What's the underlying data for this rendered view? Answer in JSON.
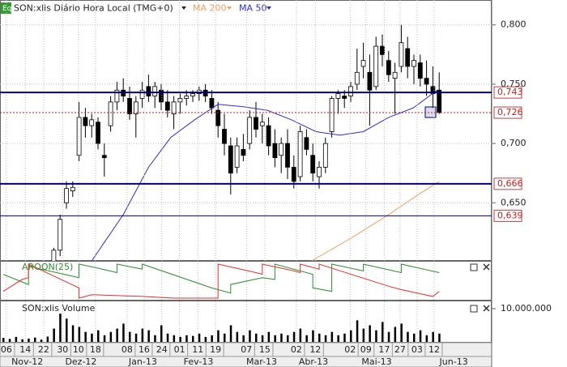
{
  "chart_data": [
    {
      "type": "candlestick",
      "title": "SON:xlis Diário Hora Local (TMG+0)",
      "badge": "Eq",
      "ylim": [
        0.601,
        0.821
      ],
      "yticks": [
        {
          "value": 0.8,
          "label": "0,800"
        },
        {
          "value": 0.75,
          "label": "0,750"
        },
        {
          "value": 0.7,
          "label": "0,700"
        },
        {
          "value": 0.65,
          "label": "0,650"
        }
      ],
      "grid": true,
      "levels": [
        {
          "value": 0.743,
          "label": "0,743",
          "color": "#000080",
          "style": "solid"
        },
        {
          "value": 0.726,
          "label": "0,726",
          "color": "#b22222",
          "style": "dotted"
        },
        {
          "value": 0.666,
          "label": "0,666",
          "color": "#000080",
          "style": "solid"
        },
        {
          "value": 0.639,
          "label": "0,639",
          "color": "#000080",
          "style": "thin"
        }
      ],
      "candles": [
        null,
        null,
        null,
        null,
        null,
        null,
        null,
        null,
        [
          0.6,
          0.612,
          0.598,
          0.61
        ],
        [
          0.61,
          0.64,
          0.605,
          0.636
        ],
        [
          0.65,
          0.668,
          0.645,
          0.662
        ],
        [
          0.66,
          0.668,
          0.655,
          0.663
        ],
        [
          0.69,
          0.735,
          0.685,
          0.722
        ],
        [
          0.722,
          0.73,
          0.705,
          0.715
        ],
        [
          0.715,
          0.725,
          0.705,
          0.72
        ],
        [
          0.718,
          0.722,
          0.695,
          0.7
        ],
        [
          0.69,
          0.7,
          0.672,
          0.688
        ],
        [
          0.715,
          0.74,
          0.71,
          0.735
        ],
        [
          0.735,
          0.752,
          0.728,
          0.745
        ],
        [
          0.745,
          0.755,
          0.735,
          0.74
        ],
        [
          0.738,
          0.748,
          0.72,
          0.725
        ],
        [
          0.725,
          0.74,
          0.705,
          0.735
        ],
        [
          0.738,
          0.752,
          0.73,
          0.745
        ],
        [
          0.748,
          0.758,
          0.735,
          0.74
        ],
        [
          0.74,
          0.752,
          0.73,
          0.748
        ],
        [
          0.745,
          0.75,
          0.728,
          0.735
        ],
        [
          0.735,
          0.745,
          0.722,
          0.728
        ],
        [
          0.725,
          0.74,
          0.712,
          0.735
        ],
        [
          0.735,
          0.742,
          0.725,
          0.738
        ],
        [
          0.738,
          0.745,
          0.732,
          0.74
        ],
        [
          0.74,
          0.745,
          0.735,
          0.742
        ],
        [
          0.742,
          0.748,
          0.736,
          0.745
        ],
        [
          0.745,
          0.75,
          0.735,
          0.74
        ],
        [
          0.738,
          0.745,
          0.725,
          0.73
        ],
        [
          0.728,
          0.735,
          0.705,
          0.715
        ],
        [
          0.712,
          0.725,
          0.69,
          0.7
        ],
        [
          0.698,
          0.705,
          0.657,
          0.675
        ],
        [
          0.68,
          0.705,
          0.675,
          0.698
        ],
        [
          0.695,
          0.708,
          0.685,
          0.69
        ],
        [
          0.7,
          0.728,
          0.695,
          0.722
        ],
        [
          0.722,
          0.735,
          0.705,
          0.712
        ],
        [
          0.715,
          0.725,
          0.7,
          0.718
        ],
        [
          0.715,
          0.722,
          0.69,
          0.698
        ],
        [
          0.7,
          0.712,
          0.68,
          0.688
        ],
        [
          0.69,
          0.705,
          0.675,
          0.7
        ],
        [
          0.7,
          0.712,
          0.67,
          0.68
        ],
        [
          0.68,
          0.69,
          0.662,
          0.668
        ],
        [
          0.672,
          0.715,
          0.668,
          0.71
        ],
        [
          0.705,
          0.712,
          0.69,
          0.695
        ],
        [
          0.69,
          0.7,
          0.668,
          0.675
        ],
        [
          0.672,
          0.685,
          0.662,
          0.68
        ],
        [
          0.68,
          0.705,
          0.675,
          0.7
        ],
        [
          0.71,
          0.74,
          0.705,
          0.738
        ],
        [
          0.738,
          0.745,
          0.725,
          0.742
        ],
        [
          0.74,
          0.745,
          0.73,
          0.738
        ],
        [
          0.74,
          0.752,
          0.735,
          0.748
        ],
        [
          0.75,
          0.78,
          0.745,
          0.76
        ],
        [
          0.765,
          0.785,
          0.755,
          0.77
        ],
        [
          0.76,
          0.775,
          0.715,
          0.745
        ],
        [
          0.748,
          0.79,
          0.745,
          0.782
        ],
        [
          0.782,
          0.792,
          0.765,
          0.775
        ],
        [
          0.77,
          0.778,
          0.752,
          0.758
        ],
        [
          0.755,
          0.768,
          0.725,
          0.76
        ],
        [
          0.765,
          0.8,
          0.76,
          0.785
        ],
        [
          0.78,
          0.79,
          0.755,
          0.765
        ],
        [
          0.765,
          0.775,
          0.75,
          0.77
        ],
        [
          0.768,
          0.775,
          0.748,
          0.755
        ],
        [
          0.755,
          0.77,
          0.74,
          0.75
        ],
        [
          0.748,
          0.765,
          0.73,
          0.742
        ],
        [
          0.745,
          0.76,
          0.725,
          0.726
        ]
      ],
      "series": [
        {
          "name": "MA 200",
          "color": "#f0a060",
          "x": [
            48.8,
            55,
            61,
            66,
            69
          ],
          "values": [
            0.601,
            0.62,
            0.64,
            0.658,
            0.668
          ]
        },
        {
          "name": "MA 50",
          "color": "#3030c0",
          "x": [
            14,
            19,
            23,
            26.5,
            30.3,
            34,
            38,
            41.8,
            45.6,
            49.5,
            53.3,
            57,
            61,
            64.9,
            68.7
          ],
          "values": [
            0.601,
            0.64,
            0.68,
            0.705,
            0.72,
            0.733,
            0.731,
            0.728,
            0.72,
            0.71,
            0.707,
            0.71,
            0.722,
            0.73,
            0.745
          ]
        }
      ]
    },
    {
      "type": "line",
      "title": "AROON(25)",
      "ylim": [
        0,
        100
      ],
      "series": [
        {
          "color": "#2e8b2e",
          "x": [
            0,
            4,
            4,
            6,
            12,
            12,
            15,
            18,
            18,
            22,
            22,
            33,
            36,
            36,
            41,
            43,
            43,
            49,
            49,
            52,
            52,
            57,
            57,
            63,
            63,
            69
          ],
          "values": [
            70,
            40,
            95,
            85,
            60,
            100,
            88,
            75,
            100,
            85,
            100,
            30,
            15,
            40,
            60,
            55,
            100,
            70,
            30,
            20,
            100,
            80,
            100,
            75,
            100,
            75
          ]
        },
        {
          "color": "#e03030",
          "x": [
            0,
            3,
            4,
            4,
            12,
            12,
            14,
            22,
            27,
            33,
            34,
            34,
            40,
            41,
            41,
            46,
            47,
            47,
            49,
            50,
            50,
            61,
            63,
            68,
            69
          ],
          "values": [
            20,
            55,
            60,
            100,
            30,
            0,
            10,
            5,
            0,
            0,
            0,
            100,
            75,
            70,
            100,
            80,
            75,
            100,
            90,
            85,
            100,
            35,
            25,
            5,
            20
          ]
        }
      ]
    },
    {
      "type": "bar",
      "title": "SON:xlis Volume",
      "color": "#000000",
      "ylim": [
        0,
        12200000
      ],
      "yticks": [
        {
          "value": 10000000,
          "label": "10.000.000"
        }
      ],
      "values": [
        1200000,
        900000,
        1500000,
        800000,
        1000000,
        1300000,
        700000,
        1600000,
        4000000,
        8500000,
        7000000,
        5000000,
        4500000,
        3000000,
        2500000,
        3500000,
        2000000,
        3000000,
        4000000,
        5500000,
        3000000,
        2500000,
        4000000,
        3500000,
        2000000,
        5000000,
        2500000,
        2000000,
        1500000,
        2000000,
        1800000,
        2500000,
        1500000,
        2000000,
        3500000,
        2500000,
        5000000,
        3000000,
        2000000,
        3500000,
        2500000,
        2000000,
        3000000,
        2000000,
        2500000,
        2000000,
        3000000,
        4000000,
        2000000,
        3500000,
        2500000,
        2000000,
        3000000,
        2000000,
        2500000,
        3500000,
        6500000,
        4000000,
        5000000,
        3500000,
        6000000,
        3000000,
        4500000,
        5500000,
        3000000,
        2500000,
        3500000,
        2000000,
        3000000,
        2500000
      ],
      "xticks": [
        {
          "value": 0.5,
          "label": "06"
        },
        {
          "value": 3.5,
          "label": "14"
        },
        {
          "value": 6.4,
          "label": "22"
        },
        {
          "value": 9.4,
          "label": "30"
        },
        {
          "value": 11.9,
          "label": "10"
        },
        {
          "value": 14.6,
          "label": "18"
        },
        {
          "value": 19.6,
          "label": "08"
        },
        {
          "value": 22.3,
          "label": "16"
        },
        {
          "value": 25.1,
          "label": "24"
        },
        {
          "value": 27.9,
          "label": "01"
        },
        {
          "value": 30.8,
          "label": "11"
        },
        {
          "value": 33.6,
          "label": "19"
        },
        {
          "value": 38.5,
          "label": "07"
        },
        {
          "value": 41.4,
          "label": "15"
        },
        {
          "value": 46.4,
          "label": "02"
        },
        {
          "value": 49.4,
          "label": "12"
        },
        {
          "value": 54.9,
          "label": "02"
        },
        {
          "value": 57.4,
          "label": "09"
        },
        {
          "value": 60.3,
          "label": "17"
        },
        {
          "value": 62.8,
          "label": "27"
        },
        {
          "value": 65.5,
          "label": "03"
        },
        {
          "value": 68.2,
          "label": "12"
        }
      ],
      "month_ticks": [
        {
          "value": 3.8,
          "label": "Nov-12"
        },
        {
          "value": 12.3,
          "label": "Dez-12"
        },
        {
          "value": 22.1,
          "label": "Jan-13"
        },
        {
          "value": 30.9,
          "label": "Fev-13"
        },
        {
          "value": 40.9,
          "label": "Mar-13"
        },
        {
          "value": 49.1,
          "label": "Abr-13"
        },
        {
          "value": 59.1,
          "label": "Mai-13"
        },
        {
          "value": 71.3,
          "label": "Jun-13"
        }
      ]
    }
  ]
}
